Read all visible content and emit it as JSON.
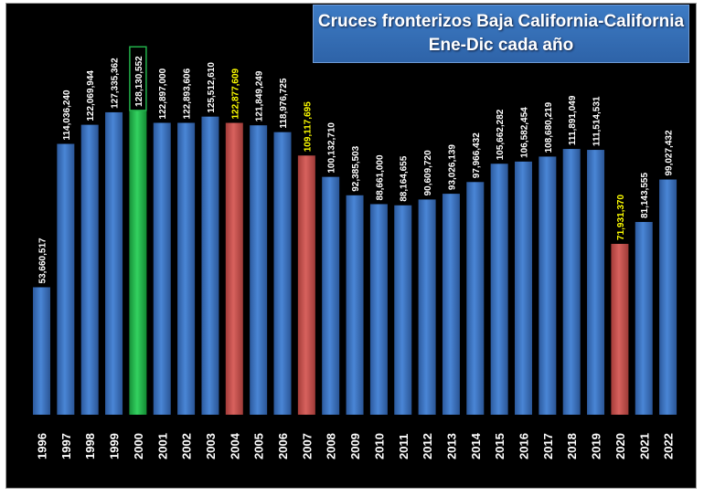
{
  "chart_data": {
    "type": "bar",
    "title": "Cruces fronterizos Baja California-California",
    "subtitle": "Ene-Dic cada año",
    "xlabel": "",
    "ylabel": "",
    "ylim": [
      0,
      140000000
    ],
    "grid": false,
    "legend": "none",
    "categories": [
      "1996",
      "1997",
      "1998",
      "1999",
      "2000",
      "2001",
      "2002",
      "2003",
      "2004",
      "2005",
      "2006",
      "2007",
      "2008",
      "2009",
      "2010",
      "2011",
      "2012",
      "2013",
      "2014",
      "2015",
      "2016",
      "2017",
      "2018",
      "2019",
      "2020",
      "2021",
      "2022"
    ],
    "values": [
      53660517,
      114036240,
      122069944,
      127335362,
      128130552,
      122897000,
      122893606,
      125512610,
      122877609,
      121849249,
      118976725,
      109117695,
      100132710,
      92385503,
      88661000,
      88164655,
      90609720,
      93026139,
      97966432,
      105662282,
      106582454,
      108680219,
      111891049,
      111514531,
      71931370,
      81143555,
      99027432
    ],
    "labels": [
      "53,660,517",
      "114,036,240",
      "122,069,944",
      "127,335,362",
      "128,130,552",
      "122,897,000",
      "122,893,606",
      "125,512,610",
      "122,877,609",
      "121,849,249",
      "118,976,725",
      "109,117,695",
      "100,132,710",
      "92,385,503",
      "88,661,000",
      "88,164,655",
      "90,609,720",
      "93,026,139",
      "97,966,432",
      "105,662,282",
      "106,582,454",
      "108,680,219",
      "111,891,049",
      "111,514,531",
      "71,931,370",
      "81,143,555",
      "99,027,432"
    ],
    "highlight_max": "2000",
    "highlight_drops": [
      "2004",
      "2007",
      "2020"
    ]
  },
  "colors": {
    "background": "#000000",
    "bar_default": "#3a6fc0",
    "bar_max": "#22b04a",
    "bar_drop": "#c0504d",
    "label_default": "#ffffff",
    "label_drop": "#ffff00",
    "max_box": "#22b04a",
    "title_bg": "#3570b8",
    "title_text": "#ffffff"
  }
}
